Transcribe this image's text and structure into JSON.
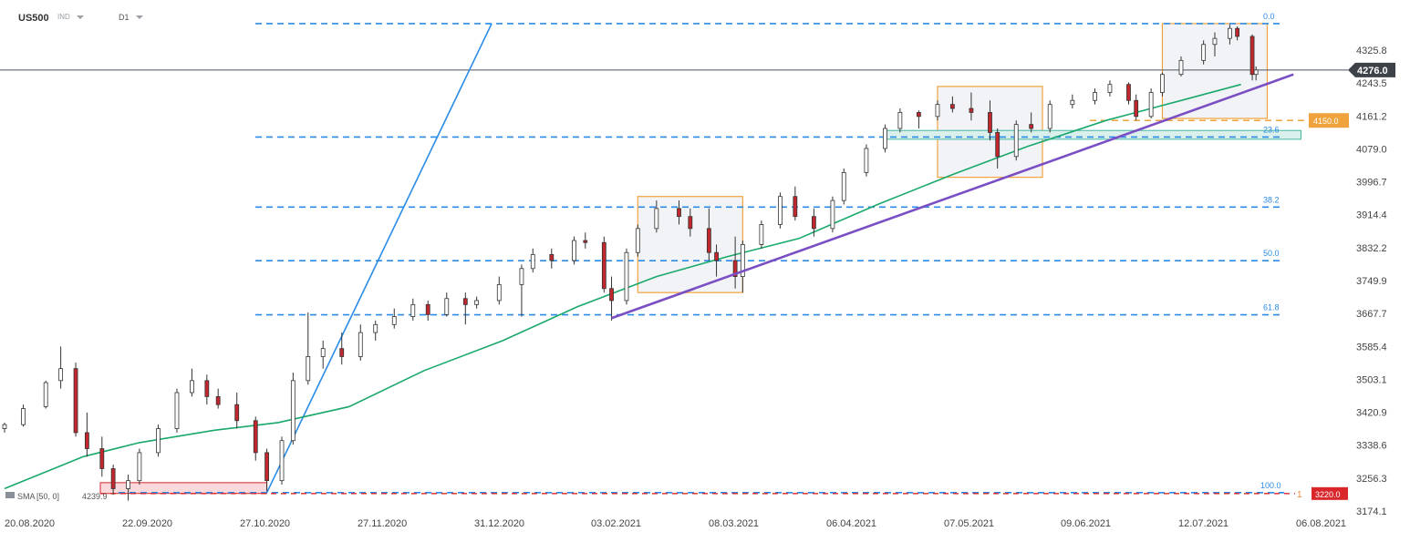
{
  "header": {
    "symbol": "US500",
    "market": "IND",
    "timeframe": "D1"
  },
  "indicator": {
    "label": "SMA",
    "params": "[50, 0]",
    "value": "4239.9"
  },
  "colors": {
    "bull": "#ffffff",
    "bear": "#c1272d",
    "wick": "#333333",
    "sma": "#1aa86b",
    "fib": "#2b8be6",
    "trend": "#7b4fc4",
    "box": "#f0a33c",
    "zone_fill": "#d9f0ec",
    "zone_edge": "#49b5a3",
    "support_box": "#f7c9cc",
    "price_tag": "#3d4248",
    "res_tag": "#f0a33c",
    "sup_tag": "#d9262b"
  },
  "chart_data": {
    "type": "candlestick",
    "y_axis": {
      "labels": [
        "4325.8",
        "4243.5",
        "4161.2",
        "4079.0",
        "3996.7",
        "3914.4",
        "3832.2",
        "3749.9",
        "3667.7",
        "3585.4",
        "3503.1",
        "3420.9",
        "3338.6",
        "3256.3",
        "3174.1"
      ],
      "range": [
        3174.1,
        4392.0
      ]
    },
    "x_axis": {
      "labels": [
        "20.08.2020",
        "22.09.2020",
        "27.10.2020",
        "27.11.2020",
        "31.12.2020",
        "03.02.2021",
        "08.03.2021",
        "06.04.2021",
        "07.05.2021",
        "09.06.2021",
        "12.07.2021",
        "06.08.2021"
      ],
      "start": "2020-08-20",
      "end": "2021-08-06"
    },
    "current_price": "4276.0",
    "levels": {
      "resistance": "4150.0",
      "support": "3220.0"
    },
    "fibonacci": [
      {
        "label": "0.0",
        "price": 4392.0
      },
      {
        "label": "23.6",
        "price": 4108.5
      },
      {
        "label": "38.2",
        "price": 3933.5
      },
      {
        "label": "50.0",
        "price": 3799.5
      },
      {
        "label": "61.8",
        "price": 3664.5
      },
      {
        "label": "100.0",
        "price": 3220.0
      }
    ],
    "trend_line": [
      {
        "date": "2021-01-29",
        "price": 3656
      },
      {
        "date": "2021-07-30",
        "price": 4265
      }
    ],
    "fan_line": [
      {
        "date": "2020-10-29",
        "price": 3220
      },
      {
        "date": "2020-12-28",
        "price": 4392
      }
    ],
    "consolidation_boxes": [
      {
        "from": "2021-02-05",
        "to": "2021-03-05",
        "low": 3720,
        "high": 3960
      },
      {
        "from": "2021-04-26",
        "to": "2021-05-24",
        "low": 4008,
        "high": 4235
      },
      {
        "from": "2021-06-25",
        "to": "2021-07-23",
        "low": 4155,
        "high": 4392
      }
    ],
    "support_zone": {
      "from": "2021-04-12",
      "to": "2021-08-01",
      "low": 4103,
      "high": 4125
    },
    "support_box": {
      "from": "2020-09-14",
      "to": "2020-10-29",
      "low": 3218,
      "high": 3245
    },
    "sma50": [
      {
        "date": "2020-08-20",
        "value": 3230
      },
      {
        "date": "2020-09-10",
        "value": 3310
      },
      {
        "date": "2020-09-25",
        "value": 3345
      },
      {
        "date": "2020-10-15",
        "value": 3376
      },
      {
        "date": "2020-11-01",
        "value": 3395
      },
      {
        "date": "2020-11-20",
        "value": 3435
      },
      {
        "date": "2020-12-10",
        "value": 3525
      },
      {
        "date": "2020-12-31",
        "value": 3600
      },
      {
        "date": "2021-01-20",
        "value": 3685
      },
      {
        "date": "2021-02-10",
        "value": 3760
      },
      {
        "date": "2021-03-01",
        "value": 3810
      },
      {
        "date": "2021-03-20",
        "value": 3855
      },
      {
        "date": "2021-04-10",
        "value": 3940
      },
      {
        "date": "2021-04-30",
        "value": 4015
      },
      {
        "date": "2021-05-20",
        "value": 4085
      },
      {
        "date": "2021-06-10",
        "value": 4150
      },
      {
        "date": "2021-06-30",
        "value": 4200
      },
      {
        "date": "2021-07-16",
        "value": 4240
      }
    ],
    "candles": [
      [
        "2020-08-20",
        3380,
        3395,
        3370,
        3390
      ],
      [
        "2020-08-25",
        3390,
        3440,
        3385,
        3430
      ],
      [
        "2020-08-31",
        3435,
        3500,
        3430,
        3495
      ],
      [
        "2020-09-04",
        3500,
        3585,
        3480,
        3530
      ],
      [
        "2020-09-08",
        3530,
        3545,
        3360,
        3370
      ],
      [
        "2020-09-11",
        3370,
        3420,
        3310,
        3330
      ],
      [
        "2020-09-15",
        3330,
        3360,
        3260,
        3280
      ],
      [
        "2020-09-18",
        3280,
        3290,
        3215,
        3230
      ],
      [
        "2020-09-22",
        3230,
        3265,
        3200,
        3250
      ],
      [
        "2020-09-25",
        3250,
        3330,
        3240,
        3320
      ],
      [
        "2020-09-30",
        3320,
        3390,
        3310,
        3380
      ],
      [
        "2020-10-05",
        3380,
        3480,
        3370,
        3470
      ],
      [
        "2020-10-09",
        3470,
        3530,
        3460,
        3500
      ],
      [
        "2020-10-13",
        3500,
        3515,
        3440,
        3460
      ],
      [
        "2020-10-16",
        3460,
        3480,
        3430,
        3440
      ],
      [
        "2020-10-21",
        3440,
        3470,
        3380,
        3400
      ],
      [
        "2020-10-26",
        3400,
        3410,
        3300,
        3320
      ],
      [
        "2020-10-29",
        3320,
        3330,
        3225,
        3250
      ],
      [
        "2020-11-02",
        3250,
        3360,
        3240,
        3350
      ],
      [
        "2020-11-05",
        3350,
        3520,
        3340,
        3500
      ],
      [
        "2020-11-09",
        3500,
        3670,
        3490,
        3560
      ],
      [
        "2020-11-13",
        3560,
        3600,
        3530,
        3580
      ],
      [
        "2020-11-18",
        3580,
        3620,
        3540,
        3560
      ],
      [
        "2020-11-23",
        3560,
        3640,
        3550,
        3620
      ],
      [
        "2020-11-27",
        3620,
        3650,
        3600,
        3640
      ],
      [
        "2020-12-02",
        3640,
        3680,
        3630,
        3660
      ],
      [
        "2020-12-07",
        3660,
        3705,
        3650,
        3690
      ],
      [
        "2020-12-11",
        3690,
        3700,
        3650,
        3665
      ],
      [
        "2020-12-16",
        3665,
        3720,
        3660,
        3705
      ],
      [
        "2020-12-21",
        3705,
        3720,
        3640,
        3690
      ],
      [
        "2020-12-24",
        3690,
        3710,
        3680,
        3700
      ],
      [
        "2020-12-30",
        3700,
        3760,
        3690,
        3740
      ],
      [
        "2021-01-05",
        3740,
        3790,
        3660,
        3780
      ],
      [
        "2021-01-08",
        3780,
        3830,
        3770,
        3815
      ],
      [
        "2021-01-13",
        3815,
        3830,
        3780,
        3800
      ],
      [
        "2021-01-19",
        3800,
        3860,
        3790,
        3850
      ],
      [
        "2021-01-22",
        3850,
        3870,
        3830,
        3845
      ],
      [
        "2021-01-27",
        3845,
        3860,
        3720,
        3730
      ],
      [
        "2021-01-29",
        3730,
        3760,
        3650,
        3700
      ],
      [
        "2021-02-02",
        3700,
        3830,
        3690,
        3820
      ],
      [
        "2021-02-05",
        3820,
        3890,
        3810,
        3880
      ],
      [
        "2021-02-10",
        3880,
        3950,
        3870,
        3930
      ],
      [
        "2021-02-16",
        3930,
        3950,
        3890,
        3910
      ],
      [
        "2021-02-19",
        3910,
        3930,
        3860,
        3880
      ],
      [
        "2021-02-24",
        3880,
        3930,
        3800,
        3820
      ],
      [
        "2021-02-26",
        3820,
        3840,
        3760,
        3800
      ],
      [
        "2021-03-03",
        3800,
        3860,
        3730,
        3760
      ],
      [
        "2021-03-05",
        3760,
        3850,
        3720,
        3840
      ],
      [
        "2021-03-10",
        3840,
        3900,
        3830,
        3890
      ],
      [
        "2021-03-15",
        3890,
        3970,
        3880,
        3960
      ],
      [
        "2021-03-19",
        3960,
        3985,
        3900,
        3910
      ],
      [
        "2021-03-24",
        3910,
        3930,
        3860,
        3880
      ],
      [
        "2021-03-29",
        3880,
        3960,
        3870,
        3950
      ],
      [
        "2021-04-01",
        3950,
        4030,
        3940,
        4020
      ],
      [
        "2021-04-07",
        4020,
        4090,
        4010,
        4080
      ],
      [
        "2021-04-12",
        4080,
        4140,
        4070,
        4130
      ],
      [
        "2021-04-16",
        4130,
        4180,
        4120,
        4170
      ],
      [
        "2021-04-21",
        4170,
        4175,
        4130,
        4160
      ],
      [
        "2021-04-26",
        4160,
        4200,
        4150,
        4190
      ],
      [
        "2021-04-30",
        4190,
        4210,
        4170,
        4180
      ],
      [
        "2021-05-05",
        4180,
        4220,
        4150,
        4170
      ],
      [
        "2021-05-10",
        4170,
        4200,
        4100,
        4120
      ],
      [
        "2021-05-12",
        4120,
        4130,
        4030,
        4060
      ],
      [
        "2021-05-17",
        4060,
        4150,
        4050,
        4140
      ],
      [
        "2021-05-21",
        4140,
        4170,
        4120,
        4130
      ],
      [
        "2021-05-26",
        4130,
        4200,
        4120,
        4190
      ],
      [
        "2021-06-01",
        4190,
        4215,
        4180,
        4200
      ],
      [
        "2021-06-07",
        4200,
        4230,
        4190,
        4220
      ],
      [
        "2021-06-11",
        4220,
        4250,
        4210,
        4240
      ],
      [
        "2021-06-16",
        4240,
        4245,
        4190,
        4200
      ],
      [
        "2021-06-18",
        4200,
        4215,
        4150,
        4160
      ],
      [
        "2021-06-22",
        4160,
        4230,
        4155,
        4220
      ],
      [
        "2021-06-25",
        4220,
        4270,
        4210,
        4265
      ],
      [
        "2021-06-30",
        4265,
        4310,
        4260,
        4300
      ],
      [
        "2021-07-06",
        4300,
        4350,
        4290,
        4340
      ],
      [
        "2021-07-09",
        4340,
        4370,
        4310,
        4355
      ],
      [
        "2021-07-13",
        4355,
        4390,
        4340,
        4380
      ],
      [
        "2021-07-15",
        4380,
        4385,
        4350,
        4360
      ],
      [
        "2021-07-19",
        4360,
        4365,
        4250,
        4265
      ],
      [
        "2021-07-20",
        4265,
        4285,
        4250,
        4276
      ]
    ]
  }
}
